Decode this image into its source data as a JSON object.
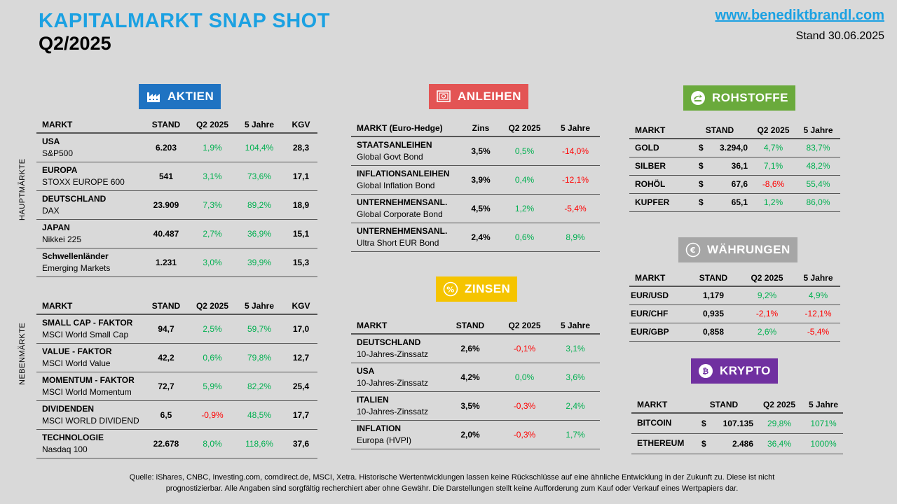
{
  "header": {
    "title": "KAPITALMARKT SNAP SHOT",
    "subtitle": "Q2/2025",
    "website": "www.benediktbrandl.com",
    "stand": "Stand 30.06.2025"
  },
  "colors": {
    "title": "#1ba1e2",
    "aktien": "#1f73c2",
    "anleihen": "#e35454",
    "zinsen": "#f5c400",
    "rohstoffe": "#6aaa3c",
    "waehrungen": "#a6a6a6",
    "krypto": "#7030a0",
    "positive": "#00b050",
    "negative": "#ff0000"
  },
  "labels": {
    "hauptmaerkte": "HAUPTMÄRKTE",
    "nebenmaerkte": "NEBENMÄRKTE"
  },
  "aktien": {
    "badge": "AKTIEN",
    "icon": "factory-icon",
    "headers": [
      "MARKT",
      "STAND",
      "Q2 2025",
      "5 Jahre",
      "KGV"
    ],
    "rows": [
      {
        "name": "USA",
        "sub": "S&P500",
        "stand": "6.203",
        "q2": "1,9%",
        "y5": "104,4%",
        "kgv": "28,3"
      },
      {
        "name": "EUROPA",
        "sub": "STOXX EUROPE 600",
        "stand": "541",
        "q2": "3,1%",
        "y5": "73,6%",
        "kgv": "17,1"
      },
      {
        "name": "DEUTSCHLAND",
        "sub": "DAX",
        "stand": "23.909",
        "q2": "7,3%",
        "y5": "89,2%",
        "kgv": "18,9"
      },
      {
        "name": "JAPAN",
        "sub": "Nikkei 225",
        "stand": "40.487",
        "q2": "2,7%",
        "y5": "36,9%",
        "kgv": "15,1"
      },
      {
        "name": "Schwellenländer",
        "sub": "Emerging Markets",
        "stand": "1.231",
        "q2": "3,0%",
        "y5": "39,9%",
        "kgv": "15,3"
      }
    ]
  },
  "faktoren": {
    "headers": [
      "MARKT",
      "STAND",
      "Q2 2025",
      "5 Jahre",
      "KGV"
    ],
    "rows": [
      {
        "name": "SMALL CAP - FAKTOR",
        "sub": "MSCI World Small Cap",
        "stand": "94,7",
        "q2": "2,5%",
        "y5": "59,7%",
        "kgv": "17,0"
      },
      {
        "name": "VALUE - FAKTOR",
        "sub": "MSCI World Value",
        "stand": "42,2",
        "q2": "0,6%",
        "y5": "79,8%",
        "kgv": "12,7"
      },
      {
        "name": "MOMENTUM - FAKTOR",
        "sub": "MSCI World Momentum",
        "stand": "72,7",
        "q2": "5,9%",
        "y5": "82,2%",
        "kgv": "25,4"
      },
      {
        "name": "DIVIDENDEN",
        "sub": "MSCI WORLD DIVIDEND",
        "stand": "6,5",
        "q2": "-0,9%",
        "y5": "48,5%",
        "kgv": "17,7"
      },
      {
        "name": "TECHNOLOGIE",
        "sub": "Nasdaq 100",
        "stand": "22.678",
        "q2": "8,0%",
        "y5": "118,6%",
        "kgv": "37,6"
      }
    ]
  },
  "anleihen": {
    "badge": "ANLEIHEN",
    "icon": "safe-icon",
    "headers": [
      "MARKT (Euro-Hedge)",
      "Zins",
      "Q2 2025",
      "5 Jahre"
    ],
    "rows": [
      {
        "name": "STAATSANLEIHEN",
        "sub": "Global Govt Bond",
        "zins": "3,5%",
        "q2": "0,5%",
        "y5": "-14,0%"
      },
      {
        "name": "INFLATIONSANLEIHEN",
        "sub": "Global Inflation Bond",
        "zins": "3,9%",
        "q2": "0,4%",
        "y5": "-12,1%"
      },
      {
        "name": "UNTERNEHMENSANL.",
        "sub": "Global Corporate Bond",
        "zins": "4,5%",
        "q2": "1,2%",
        "y5": "-5,4%"
      },
      {
        "name": "UNTERNEHMENSANL.",
        "sub": "Ultra Short EUR Bond",
        "zins": "2,4%",
        "q2": "0,6%",
        "y5": "8,9%"
      }
    ]
  },
  "zinsen": {
    "badge": "ZINSEN",
    "icon": "percent-icon",
    "headers": [
      "MARKT",
      "STAND",
      "Q2 2025",
      "5 Jahre"
    ],
    "rows": [
      {
        "name": "DEUTSCHLAND",
        "sub": "10-Jahres-Zinssatz",
        "stand": "2,6%",
        "q2": "-0,1%",
        "y5": "3,1%"
      },
      {
        "name": "USA",
        "sub": "10-Jahres-Zinssatz",
        "stand": "4,2%",
        "q2": "0,0%",
        "y5": "3,6%"
      },
      {
        "name": "ITALIEN",
        "sub": "10-Jahres-Zinssatz",
        "stand": "3,5%",
        "q2": "-0,3%",
        "y5": "2,4%"
      },
      {
        "name": "INFLATION",
        "sub": "Europa (HVPI)",
        "stand": "2,0%",
        "q2": "-0,3%",
        "y5": "1,7%"
      }
    ]
  },
  "rohstoffe": {
    "badge": "ROHSTOFFE",
    "icon": "recycle-icon",
    "headers": [
      "MARKT",
      "STAND",
      "Q2 2025",
      "5 Jahre"
    ],
    "rows": [
      {
        "name": "GOLD",
        "cur": "$",
        "stand": "3.294,0",
        "q2": "4,7%",
        "y5": "83,7%"
      },
      {
        "name": "SILBER",
        "cur": "$",
        "stand": "36,1",
        "q2": "7,1%",
        "y5": "48,2%"
      },
      {
        "name": "ROHÖL",
        "cur": "$",
        "stand": "67,6",
        "q2": "-8,6%",
        "y5": "55,4%"
      },
      {
        "name": "KUPFER",
        "cur": "$",
        "stand": "65,1",
        "q2": "1,2%",
        "y5": "86,0%"
      }
    ]
  },
  "waehrungen": {
    "badge": "WÄHRUNGEN",
    "icon": "euro-coin-icon",
    "headers": [
      "MARKT",
      "STAND",
      "Q2 2025",
      "5 Jahre"
    ],
    "rows": [
      {
        "name": "EUR/USD",
        "stand": "1,179",
        "q2": "9,2%",
        "y5": "4,9%"
      },
      {
        "name": "EUR/CHF",
        "stand": "0,935",
        "q2": "-2,1%",
        "y5": "-12,1%"
      },
      {
        "name": "EUR/GBP",
        "stand": "0,858",
        "q2": "2,6%",
        "y5": "-5,4%"
      }
    ]
  },
  "krypto": {
    "badge": "KRYPTO",
    "icon": "bitcoin-icon",
    "headers": [
      "MARKT",
      "STAND",
      "Q2 2025",
      "5 Jahre"
    ],
    "rows": [
      {
        "name": "BITCOIN",
        "cur": "$",
        "stand": "107.135",
        "q2": "29,8%",
        "y5": "1071%"
      },
      {
        "name": "ETHEREUM",
        "cur": "$",
        "stand": "2.486",
        "q2": "36,4%",
        "y5": "1000%"
      }
    ]
  },
  "footer": {
    "line1": "Quelle: iShares, CNBC, Investing.com, comdirect.de, MSCI, Xetra. Historische Wertentwicklungen lassen keine Rückschlüsse auf eine ähnliche Entwicklung in der Zukunft zu. Diese ist nicht",
    "line2": "prognostizierbar. Alle Angaben sind sorgfältig recherchiert aber ohne Gewähr. Die Darstellungen stellt keine Aufforderung zum Kauf oder Verkauf eines Wertpapiers dar."
  }
}
